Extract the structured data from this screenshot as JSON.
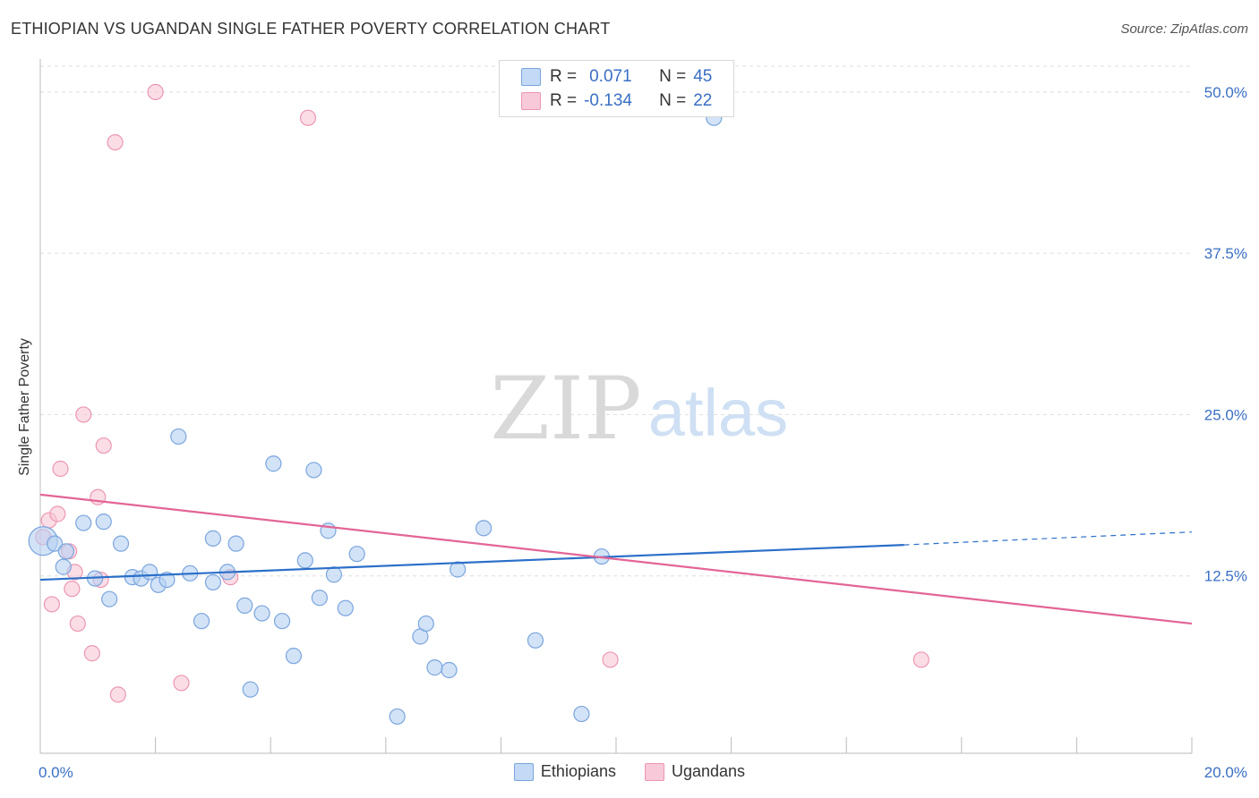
{
  "header": {
    "title": "ETHIOPIAN VS UGANDAN SINGLE FATHER POVERTY CORRELATION CHART",
    "source": "Source: ZipAtlas.com"
  },
  "watermark": {
    "zip": "ZIP",
    "atlas": "atlas"
  },
  "legend": {
    "rows": [
      {
        "r_label": "R =",
        "r_value": "0.071",
        "n_label": "N =",
        "n_value": "45",
        "color": "#a8c8f0"
      },
      {
        "r_label": "R =",
        "r_value": "-0.134",
        "n_label": "N =",
        "n_value": "22",
        "color": "#f5b8cb"
      }
    ]
  },
  "bottom_legend": {
    "items": [
      "Ethiopians",
      "Ugandans"
    ]
  },
  "chart_data": {
    "type": "scatter",
    "title": "ETHIOPIAN VS UGANDAN SINGLE FATHER POVERTY CORRELATION CHART",
    "xlabel": "",
    "ylabel": "Single Father Poverty",
    "xlim": [
      0,
      20
    ],
    "ylim": [
      0,
      52
    ],
    "x_tick_labels": [
      "0.0%",
      "20.0%"
    ],
    "y_ticks": [
      12.5,
      25.0,
      37.5,
      50.0
    ],
    "y_tick_labels": [
      "12.5%",
      "25.0%",
      "37.5%",
      "50.0%"
    ],
    "grid": true,
    "legend_position": "top-center",
    "colors": {
      "ethiopians_fill": "#b6d1f2",
      "ethiopians_stroke": "#7aa5de",
      "ethiopians_line": "#2b6fc9",
      "ugandans_fill": "#f8c6d6",
      "ugandans_stroke": "#ec97b2",
      "ugandans_line": "#e36596",
      "tick_label": "#3a6fc4"
    },
    "series": [
      {
        "name": "Ethiopians",
        "points": [
          [
            0.05,
            15.2
          ],
          [
            0.25,
            15.0
          ],
          [
            0.45,
            14.4
          ],
          [
            0.4,
            13.2
          ],
          [
            0.75,
            16.6
          ],
          [
            0.95,
            12.3
          ],
          [
            1.1,
            16.7
          ],
          [
            1.2,
            10.7
          ],
          [
            1.4,
            15.0
          ],
          [
            1.6,
            12.4
          ],
          [
            1.75,
            12.3
          ],
          [
            1.9,
            12.8
          ],
          [
            2.05,
            11.8
          ],
          [
            2.2,
            12.2
          ],
          [
            2.4,
            23.3
          ],
          [
            2.6,
            12.7
          ],
          [
            2.8,
            9.0
          ],
          [
            3.0,
            15.4
          ],
          [
            3.0,
            12.0
          ],
          [
            3.25,
            12.8
          ],
          [
            3.4,
            15.0
          ],
          [
            3.55,
            10.2
          ],
          [
            3.65,
            3.7
          ],
          [
            3.85,
            9.6
          ],
          [
            4.05,
            21.2
          ],
          [
            4.2,
            9.0
          ],
          [
            4.4,
            6.3
          ],
          [
            4.6,
            13.7
          ],
          [
            4.75,
            20.7
          ],
          [
            4.85,
            10.8
          ],
          [
            5.0,
            16.0
          ],
          [
            5.1,
            12.6
          ],
          [
            5.3,
            10.0
          ],
          [
            5.5,
            14.2
          ],
          [
            6.2,
            1.6
          ],
          [
            6.6,
            7.8
          ],
          [
            6.85,
            5.4
          ],
          [
            6.7,
            8.8
          ],
          [
            7.1,
            5.2
          ],
          [
            7.25,
            13.0
          ],
          [
            7.7,
            16.2
          ],
          [
            8.6,
            7.5
          ],
          [
            9.4,
            1.8
          ],
          [
            9.75,
            14.0
          ],
          [
            11.7,
            48.0
          ]
        ],
        "trend": {
          "x": [
            0,
            15
          ],
          "y": [
            12.2,
            14.9
          ],
          "dashed_to": [
            20,
            15.9
          ]
        }
      },
      {
        "name": "Ugandans",
        "points": [
          [
            0.05,
            15.5
          ],
          [
            0.15,
            16.8
          ],
          [
            0.3,
            17.3
          ],
          [
            0.35,
            20.8
          ],
          [
            0.2,
            10.3
          ],
          [
            0.5,
            14.4
          ],
          [
            0.55,
            11.5
          ],
          [
            0.6,
            12.8
          ],
          [
            0.65,
            8.8
          ],
          [
            0.75,
            25.0
          ],
          [
            0.9,
            6.5
          ],
          [
            1.0,
            18.6
          ],
          [
            1.05,
            12.2
          ],
          [
            1.1,
            22.6
          ],
          [
            1.3,
            46.1
          ],
          [
            1.35,
            3.3
          ],
          [
            2.0,
            50.0
          ],
          [
            2.45,
            4.2
          ],
          [
            3.3,
            12.4
          ],
          [
            4.65,
            48.0
          ],
          [
            9.9,
            6.0
          ],
          [
            15.3,
            6.0
          ]
        ],
        "trend": {
          "x": [
            0,
            20
          ],
          "y": [
            18.8,
            8.8
          ]
        }
      }
    ]
  }
}
